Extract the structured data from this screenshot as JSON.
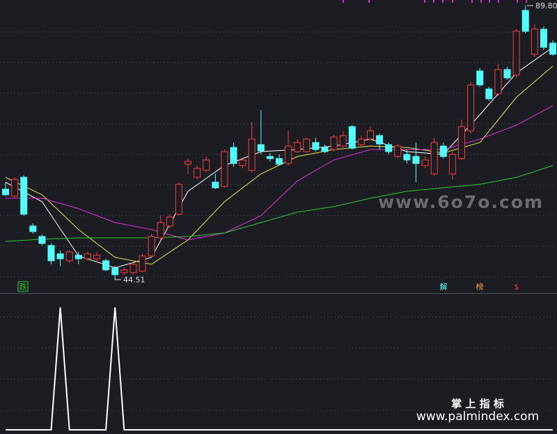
{
  "chart_data": [
    {
      "type": "candlestick",
      "ylim": [
        42.42,
        90.72
      ],
      "up_color": "#ff3b3b",
      "down_color": "#54ffff",
      "open": [
        59.44,
        58.29,
        61.4,
        53.35,
        51.62,
        50.13,
        48.75,
        47.6,
        48.52,
        47.94,
        47.94,
        47.6,
        46.44,
        45.64,
        45.64,
        45.87,
        48.4,
        51.39,
        53.35,
        55.3,
        63.58,
        61.4,
        62.55,
        60.59,
        59.9,
        66.34,
        63.35,
        62.55,
        66.8,
        64.85,
        64.5,
        63.69,
        65.65,
        65.65,
        67.15,
        66.34,
        66.0,
        66.57,
        69.79,
        66.8,
        67.72,
        68.3,
        66.8,
        64.85,
        65.19,
        64.85,
        63.35,
        61.97,
        66.57,
        61.97,
        64.5,
        69.1,
        78.99,
        76.0,
        75.19,
        79.22,
        78.3,
        89.0,
        81.75,
        85.89,
        83.59
      ],
      "high": [
        60.59,
        61.4,
        61.74,
        53.81,
        51.97,
        50.47,
        49.32,
        49.32,
        49.09,
        49.09,
        49.09,
        47.94,
        46.79,
        46.44,
        47.25,
        48.75,
        52.08,
        55.07,
        55.3,
        60.59,
        64.5,
        63.35,
        64.85,
        61.97,
        66.0,
        67.15,
        64.73,
        70.6,
        72.55,
        65.42,
        65.19,
        69.1,
        67.72,
        67.95,
        67.95,
        66.8,
        68.41,
        69.1,
        70.02,
        68.3,
        69.79,
        68.64,
        67.15,
        66.92,
        66.0,
        67.15,
        64.85,
        67.95,
        67.15,
        65.65,
        70.94,
        77.15,
        79.45,
        76.34,
        80.14,
        79.68,
        85.89,
        89.8,
        86.69,
        86.35,
        84.05
      ],
      "low": [
        58.29,
        58.06,
        55.07,
        52.08,
        50.13,
        47.02,
        46.68,
        47.25,
        47.02,
        47.6,
        47.25,
        45.87,
        44.51,
        45.3,
        45.3,
        45.64,
        48.17,
        51.05,
        53.0,
        55.07,
        61.97,
        61.05,
        62.2,
        59.44,
        59.67,
        63.12,
        62.89,
        62.2,
        65.19,
        64.04,
        63.35,
        63.35,
        65.42,
        65.42,
        65.65,
        65.42,
        65.65,
        66.34,
        66.0,
        66.34,
        67.49,
        66.0,
        65.19,
        64.5,
        63.69,
        60.59,
        62.89,
        61.74,
        64.5,
        61.05,
        64.27,
        68.64,
        76.34,
        74.04,
        74.85,
        77.5,
        77.84,
        85.2,
        81.29,
        82.44,
        81.52
      ],
      "close": [
        58.52,
        61.05,
        55.3,
        52.43,
        50.47,
        47.6,
        47.94,
        49.09,
        47.94,
        48.75,
        48.52,
        46.1,
        45.3,
        46.1,
        47.02,
        48.4,
        51.62,
        53.92,
        54.84,
        60.25,
        64.04,
        62.89,
        64.27,
        59.67,
        65.65,
        63.69,
        64.27,
        67.72,
        65.76,
        64.5,
        63.58,
        66.57,
        67.15,
        67.72,
        66.0,
        65.65,
        68.07,
        68.3,
        66.22,
        67.72,
        69.1,
        66.92,
        65.65,
        66.57,
        64.27,
        63.69,
        64.27,
        67.15,
        64.85,
        65.19,
        69.79,
        76.69,
        76.69,
        74.39,
        79.22,
        77.84,
        85.55,
        85.55,
        85.89,
        82.9,
        81.75
      ],
      "lines": [
        {
          "color": "#ffffff",
          "x": [
            0,
            4,
            8,
            12,
            16,
            20,
            24,
            28,
            32,
            36,
            40,
            44,
            48,
            52,
            56,
            60
          ],
          "values": [
            60.59,
            57.37,
            48.4,
            46.44,
            48.17,
            59.1,
            63.35,
            65.65,
            66.0,
            66.57,
            67.72,
            65.65,
            65.19,
            71.75,
            78.65,
            82.9
          ]
        },
        {
          "color": "#e8e84a",
          "x": [
            0,
            4,
            8,
            12,
            16,
            20,
            24,
            28,
            32,
            36,
            40,
            44,
            48,
            52,
            56,
            60
          ],
          "values": [
            61.4,
            58.52,
            52.77,
            48.17,
            47.02,
            51.05,
            57.37,
            61.97,
            64.85,
            66.0,
            66.57,
            66.34,
            65.42,
            67.15,
            74.62,
            79.8
          ]
        },
        {
          "color": "#e02ee0",
          "x": [
            0,
            4,
            8,
            12,
            16,
            20,
            24,
            28,
            32,
            36,
            40,
            44,
            48,
            52,
            56,
            60
          ],
          "values": [
            57.95,
            57.95,
            56.22,
            53.92,
            52.77,
            51.05,
            52.2,
            55.07,
            60.82,
            64.27,
            66.0,
            66.0,
            66.0,
            67.72,
            70.02,
            73.24
          ]
        },
        {
          "color": "#2ecc2e",
          "x": [
            0,
            4,
            8,
            12,
            16,
            20,
            24,
            28,
            32,
            36,
            40,
            44,
            48,
            52,
            56,
            60
          ],
          "values": [
            50.82,
            51.16,
            51.39,
            51.39,
            51.39,
            51.62,
            52.2,
            53.92,
            55.65,
            56.57,
            57.95,
            59.1,
            59.67,
            60.25,
            61.4,
            63.35
          ]
        }
      ],
      "high_label": "89.80",
      "low_label": "44.51",
      "signals": [
        "跌",
        "解",
        "榜",
        "$"
      ]
    },
    {
      "type": "line",
      "ylim": [
        0,
        1
      ],
      "color": "#ffffff",
      "values": [
        0,
        0,
        0,
        0,
        0,
        0,
        1,
        0,
        0,
        0,
        0,
        0,
        1,
        0,
        0,
        0,
        0,
        0,
        0,
        0,
        0,
        0,
        0,
        0,
        0,
        0,
        0,
        0,
        0,
        0,
        0,
        0,
        0,
        0,
        0,
        0,
        0,
        0,
        0,
        0,
        0,
        0,
        0,
        0,
        0,
        0,
        0,
        0,
        0,
        0,
        0,
        0,
        0,
        0,
        0,
        0,
        0,
        0,
        0,
        0,
        0
      ]
    }
  ],
  "watermark": "www.6o7o.com",
  "footer": {
    "title": "掌 上 指 标",
    "url": "www.palmindex.com"
  }
}
